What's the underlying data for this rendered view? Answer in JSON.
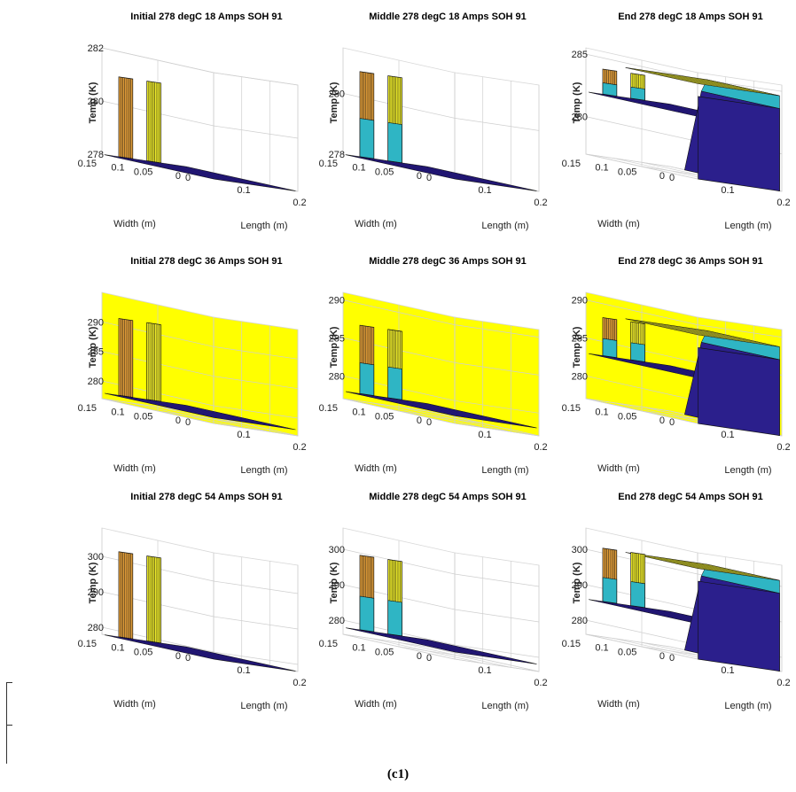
{
  "figure": {
    "caption": "(c1)",
    "colors": {
      "cold": "#2b1f8c",
      "mid": "#2fb5c4",
      "warm": "#e8a23a",
      "hot": "#f2ef2a",
      "wall": "#ffff00",
      "edge": "#111111"
    }
  },
  "chart_data": [
    {
      "type": "surface3d",
      "title": "Initial 278 degC 18 Amps SOH 91",
      "xlabel": "Length (m)",
      "ylabel": "Width (m)",
      "zlabel": "Temp (K)",
      "xticks": [
        "0",
        "0.1",
        "0.2"
      ],
      "yticks": [
        "0",
        "0.05",
        "0.1",
        "0.15"
      ],
      "zticks": [
        "278",
        "280",
        "282"
      ],
      "zlim": [
        278,
        282
      ],
      "base_temp": 278,
      "tab_peak": 281,
      "tab_colors": [
        "#e8a23a",
        "#f2ef2a"
      ],
      "wall_color": "",
      "dome": false
    },
    {
      "type": "surface3d",
      "title": "Middle 278 degC 18 Amps SOH 91",
      "xlabel": "Length (m)",
      "ylabel": "Width (m)",
      "zlabel": "Temp (K)",
      "xticks": [
        "0",
        "0.1",
        "0.2"
      ],
      "yticks": [
        "0",
        "0.05",
        "0.1",
        "0.15"
      ],
      "zticks": [
        "278",
        "280"
      ],
      "zlim": [
        278,
        281.5
      ],
      "base_temp": 278,
      "tab_peak": 280.8,
      "tab_colors": [
        "#e8a23a",
        "#f2ef2a"
      ],
      "wall_color": "",
      "dome": false
    },
    {
      "type": "surface3d",
      "title": "End 278 degC 18 Amps SOH 91",
      "xlabel": "Length (m)",
      "ylabel": "Width (m)",
      "zlabel": "Temp (K)",
      "xticks": [
        "0",
        "0.1",
        "0.2"
      ],
      "yticks": [
        "0",
        "0.05",
        "0.1",
        "0.15"
      ],
      "zticks": [
        "280",
        "285"
      ],
      "zlim": [
        277,
        285.5
      ],
      "base_temp": 282,
      "tab_peak": 284,
      "tab_colors": [
        "#e8a23a",
        "#f2ef2a"
      ],
      "wall_color": "",
      "dome": true
    },
    {
      "type": "surface3d",
      "title": "Initial 278 degC 36 Amps SOH 91",
      "xlabel": "Length (m)",
      "ylabel": "Width (m)",
      "zlabel": "Temp (K)",
      "xticks": [
        "0",
        "0.1",
        "0.2"
      ],
      "yticks": [
        "0",
        "0.05",
        "0.1",
        "0.15"
      ],
      "zticks": [
        "280",
        "285",
        "290"
      ],
      "zlim": [
        277,
        295
      ],
      "base_temp": 278,
      "tab_peak": 291,
      "tab_colors": [
        "#e8a23a",
        "#f2ef2a"
      ],
      "wall_color": "#ffff00",
      "dome": false
    },
    {
      "type": "surface3d",
      "title": "Middle 278 degC 36 Amps SOH 91",
      "xlabel": "Length (m)",
      "ylabel": "Width (m)",
      "zlabel": "Temp (K)",
      "xticks": [
        "0",
        "0.1",
        "0.2"
      ],
      "yticks": [
        "0",
        "0.05",
        "0.1",
        "0.15"
      ],
      "zticks": [
        "280",
        "285",
        "290"
      ],
      "zlim": [
        277,
        291
      ],
      "base_temp": 278,
      "tab_peak": 287,
      "tab_colors": [
        "#e8a23a",
        "#f2ef2a"
      ],
      "wall_color": "#ffff00",
      "dome": false
    },
    {
      "type": "surface3d",
      "title": "End 278 degC 36 Amps SOH 91",
      "xlabel": "Length (m)",
      "ylabel": "Width (m)",
      "zlabel": "Temp (K)",
      "xticks": [
        "0",
        "0.1",
        "0.2"
      ],
      "yticks": [
        "0",
        "0.05",
        "0.1",
        "0.15"
      ],
      "zticks": [
        "280",
        "285",
        "290"
      ],
      "zlim": [
        277,
        291
      ],
      "base_temp": 283,
      "tab_peak": 288,
      "tab_colors": [
        "#e8a23a",
        "#f2ef2a"
      ],
      "wall_color": "#ffff00",
      "dome": true
    },
    {
      "type": "surface3d",
      "title": "Initial 278 degC 54 Amps SOH 91",
      "xlabel": "Length (m)",
      "ylabel": "Width (m)",
      "zlabel": "Temp (K)",
      "xticks": [
        "0",
        "0.1",
        "0.2"
      ],
      "yticks": [
        "0",
        "0.05",
        "0.1",
        "0.15"
      ],
      "zticks": [
        "280",
        "290",
        "300"
      ],
      "zlim": [
        278,
        308
      ],
      "base_temp": 278,
      "tab_peak": 302,
      "tab_colors": [
        "#e8a23a",
        "#f2ef2a"
      ],
      "wall_color": "",
      "dome": false
    },
    {
      "type": "surface3d",
      "title": "Middle 278 degC 54 Amps SOH 91",
      "xlabel": "Length (m)",
      "ylabel": "Width (m)",
      "zlabel": "Temp (K)",
      "xticks": [
        "0",
        "0.1",
        "0.2"
      ],
      "yticks": [
        "0",
        "0.05",
        "0.1",
        "0.15"
      ],
      "zticks": [
        "280",
        "290",
        "300"
      ],
      "zlim": [
        276,
        306
      ],
      "base_temp": 278,
      "tab_peak": 299,
      "tab_colors": [
        "#e8a23a",
        "#f2ef2a"
      ],
      "wall_color": "",
      "dome": false
    },
    {
      "type": "surface3d",
      "title": "End 278 degC 54 Amps SOH 91",
      "xlabel": "Length (m)",
      "ylabel": "Width (m)",
      "zlabel": "Temp (K)",
      "xticks": [
        "0",
        "0.1",
        "0.2"
      ],
      "yticks": [
        "0",
        "0.05",
        "0.1",
        "0.15"
      ],
      "zticks": [
        "280",
        "290",
        "300"
      ],
      "zlim": [
        276,
        306
      ],
      "base_temp": 286,
      "tab_peak": 301,
      "tab_colors": [
        "#e8a23a",
        "#f2ef2a"
      ],
      "wall_color": "",
      "dome": true
    }
  ]
}
